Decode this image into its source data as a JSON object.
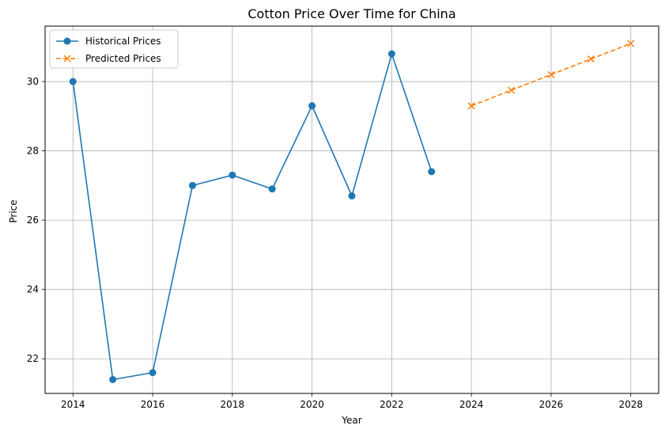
{
  "chart_data": {
    "type": "line",
    "title": "Cotton Price Over Time for China",
    "xlabel": "Year",
    "ylabel": "Price",
    "xlim": [
      2013.3,
      2028.7
    ],
    "ylim": [
      21.0,
      31.6
    ],
    "xticks": [
      2014,
      2016,
      2018,
      2020,
      2022,
      2024,
      2026,
      2028
    ],
    "yticks": [
      22,
      24,
      26,
      28,
      30
    ],
    "grid": true,
    "legend_position": "top-left",
    "series": [
      {
        "name": "Historical Prices",
        "color": "#1f77b4",
        "line_style": "solid",
        "marker": "circle",
        "x": [
          2014,
          2015,
          2016,
          2017,
          2018,
          2019,
          2020,
          2021,
          2022,
          2023
        ],
        "y": [
          30.0,
          21.4,
          21.6,
          27.0,
          27.3,
          26.9,
          29.3,
          26.7,
          30.8,
          27.4
        ]
      },
      {
        "name": "Predicted Prices",
        "color": "#ff7f0e",
        "line_style": "dashed",
        "marker": "x",
        "x": [
          2024,
          2025,
          2026,
          2027,
          2028
        ],
        "y": [
          29.3,
          29.75,
          30.2,
          30.65,
          31.1
        ]
      }
    ]
  }
}
